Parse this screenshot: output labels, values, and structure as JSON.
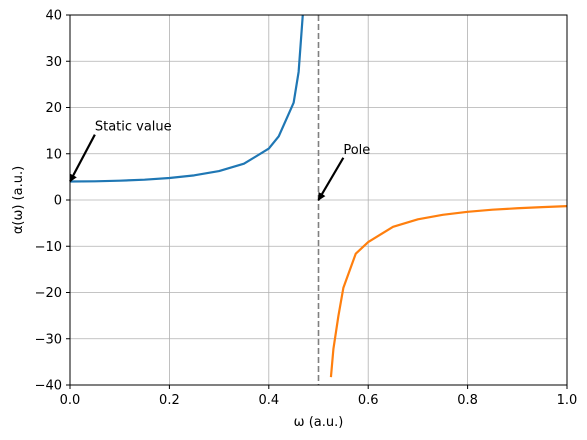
{
  "chart_data": {
    "type": "line",
    "xlabel": "ω (a.u.)",
    "ylabel": "α(ω) (a.u.)",
    "xlim": [
      0,
      1
    ],
    "ylim": [
      -40,
      40
    ],
    "xticks": [
      0,
      0.2,
      0.4,
      0.6,
      0.8,
      1.0
    ],
    "xtick_labels": [
      "0.0",
      "0.2",
      "0.4",
      "0.6",
      "0.8",
      "1.0"
    ],
    "yticks": [
      -40,
      -30,
      -20,
      -10,
      0,
      10,
      20,
      30,
      40
    ],
    "ytick_labels": [
      "−40",
      "−30",
      "−20",
      "−10",
      "0",
      "10",
      "20",
      "30",
      "40"
    ],
    "grid": true,
    "series": [
      {
        "color": "#1f77b4",
        "x": [
          0,
          0.05,
          0.1,
          0.15,
          0.2,
          0.25,
          0.3,
          0.35,
          0.4,
          0.42,
          0.44,
          0.45,
          0.46,
          0.47
        ],
        "y": [
          4.0,
          4.04,
          4.17,
          4.39,
          4.76,
          5.33,
          6.25,
          7.84,
          11.11,
          13.78,
          18.6,
          21.05,
          27.7,
          42.4
        ]
      },
      {
        "color": "#ff7f0e",
        "x": [
          0.525,
          0.53,
          0.54,
          0.55,
          0.575,
          0.6,
          0.65,
          0.7,
          0.75,
          0.8,
          0.85,
          0.9,
          0.95,
          1.0
        ],
        "y": [
          -38.3,
          -32.2,
          -25.1,
          -19.0,
          -11.6,
          -9.09,
          -5.8,
          -4.17,
          -3.2,
          -2.56,
          -2.1,
          -1.79,
          -1.54,
          -1.33
        ]
      }
    ],
    "vline": {
      "x": 0.5,
      "color": "#808080",
      "style": "dashed"
    },
    "annotations": [
      {
        "text": "Static value",
        "x": 0.0,
        "y": 4.0,
        "text_x": 0.05,
        "text_y": 15
      },
      {
        "text": "Pole",
        "x": 0.5,
        "y": 0.0,
        "text_x": 0.55,
        "text_y": 10
      }
    ]
  }
}
